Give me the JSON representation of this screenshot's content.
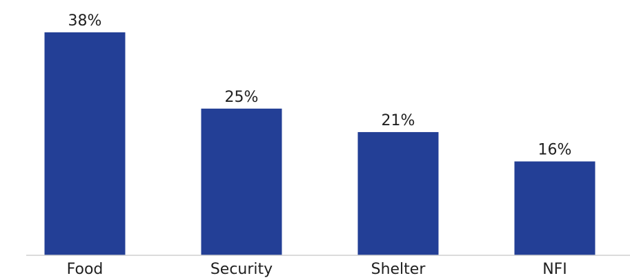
{
  "chart_data": {
    "type": "bar",
    "categories": [
      "Food",
      "Security",
      "Shelter",
      "NFI"
    ],
    "values": [
      38,
      25,
      21,
      16
    ],
    "value_labels": [
      "38%",
      "25%",
      "21%",
      "16%"
    ],
    "unit": "%",
    "title": "",
    "xlabel": "",
    "ylabel": "",
    "ylim": [
      0,
      38
    ],
    "grid": false,
    "legend": "none",
    "bar_color": "#233f96"
  }
}
